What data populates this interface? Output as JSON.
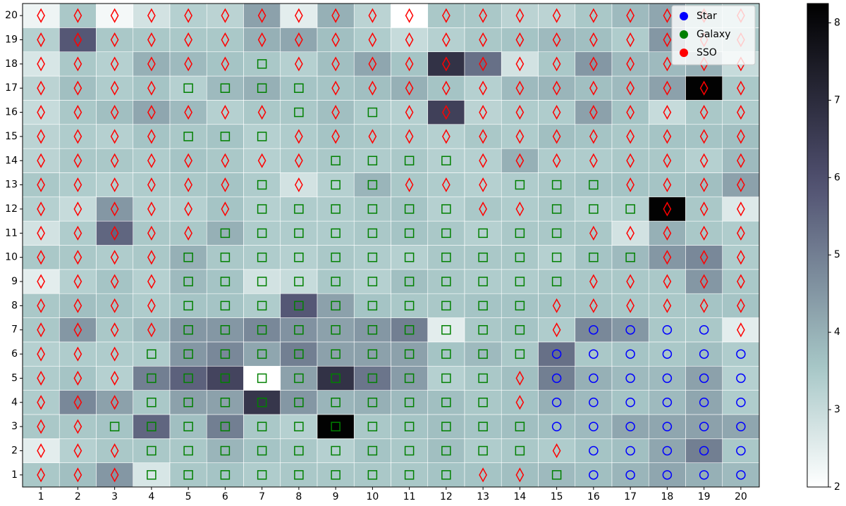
{
  "chart_data": {
    "type": "heatmap",
    "categories": [
      1,
      2,
      3,
      4,
      5,
      6,
      7,
      8,
      9,
      10,
      11,
      12,
      13,
      14,
      15,
      16,
      17,
      18,
      19,
      20
    ],
    "y_categories": [
      1,
      2,
      3,
      4,
      5,
      6,
      7,
      8,
      9,
      10,
      11,
      12,
      13,
      14,
      15,
      16,
      17,
      18,
      19,
      20
    ],
    "z": [
      [
        3.5,
        3.7,
        4.5,
        2.7,
        3.5,
        3.6,
        3.4,
        3.5,
        3.5,
        3.5,
        3.5,
        3.6,
        3.6,
        3.7,
        3.8,
        3.7,
        3.9,
        4.2,
        4.0,
        3.8
      ],
      [
        2.5,
        3.3,
        3.5,
        3.5,
        3.5,
        3.9,
        3.6,
        3.5,
        3.3,
        3.6,
        3.5,
        3.7,
        3.4,
        3.5,
        3.4,
        3.6,
        3.7,
        4.2,
        5.0,
        3.5
      ],
      [
        3.5,
        3.5,
        3.6,
        5.5,
        3.7,
        5.0,
        3.5,
        3.3,
        8.2,
        3.5,
        3.6,
        3.7,
        3.6,
        3.7,
        3.7,
        3.8,
        4.2,
        4.2,
        4.3,
        4.2
      ],
      [
        3.4,
        4.8,
        4.3,
        3.5,
        4.3,
        4.3,
        6.7,
        4.5,
        3.9,
        4.0,
        3.8,
        3.7,
        3.5,
        3.6,
        4.0,
        3.8,
        3.6,
        3.8,
        4.2,
        3.4
      ],
      [
        3.4,
        3.6,
        3.3,
        5.0,
        5.6,
        6.3,
        2.0,
        4.3,
        6.8,
        5.2,
        4.4,
        3.3,
        3.5,
        3.7,
        5.0,
        4.0,
        3.8,
        3.8,
        4.3,
        3.3
      ],
      [
        3.3,
        3.4,
        3.4,
        3.4,
        4.5,
        4.8,
        4.2,
        5.0,
        4.3,
        4.3,
        4.3,
        3.6,
        3.8,
        3.5,
        5.3,
        3.5,
        3.6,
        3.5,
        3.7,
        3.4
      ],
      [
        3.5,
        4.5,
        3.5,
        3.8,
        4.5,
        4.5,
        4.8,
        4.6,
        4.3,
        4.5,
        5.0,
        2.5,
        3.5,
        3.6,
        3.4,
        4.8,
        4.5,
        3.5,
        3.5,
        2.5
      ],
      [
        3.5,
        3.7,
        3.6,
        3.4,
        3.6,
        3.6,
        3.4,
        5.8,
        4.3,
        3.6,
        3.5,
        3.5,
        3.6,
        3.6,
        3.6,
        3.6,
        3.5,
        3.5,
        3.6,
        3.6
      ],
      [
        2.5,
        3.3,
        3.6,
        3.3,
        3.8,
        3.6,
        2.8,
        3.0,
        3.5,
        3.3,
        3.7,
        3.5,
        3.4,
        3.4,
        3.5,
        3.5,
        3.5,
        3.5,
        4.5,
        3.5
      ],
      [
        3.5,
        3.5,
        3.4,
        3.5,
        4.0,
        3.5,
        3.4,
        3.3,
        3.5,
        3.4,
        3.3,
        3.5,
        3.5,
        3.5,
        3.3,
        3.6,
        3.8,
        4.5,
        4.8,
        3.4
      ],
      [
        2.8,
        3.4,
        5.5,
        3.5,
        3.5,
        4.0,
        3.4,
        3.4,
        3.4,
        3.5,
        3.6,
        3.5,
        3.3,
        3.5,
        3.5,
        3.5,
        2.8,
        4.0,
        3.5,
        3.4
      ],
      [
        3.3,
        3.0,
        4.5,
        3.3,
        3.3,
        3.6,
        3.3,
        3.4,
        3.4,
        3.5,
        3.6,
        3.3,
        3.5,
        3.4,
        3.5,
        3.3,
        3.3,
        8.2,
        3.5,
        2.6
      ],
      [
        3.5,
        3.4,
        3.3,
        3.4,
        3.5,
        3.6,
        3.4,
        2.8,
        3.3,
        3.9,
        3.5,
        3.4,
        3.3,
        3.4,
        3.5,
        3.6,
        3.6,
        3.6,
        3.7,
        4.3
      ],
      [
        3.2,
        3.5,
        3.5,
        3.4,
        3.6,
        3.5,
        3.3,
        3.4,
        3.5,
        3.4,
        3.5,
        3.3,
        3.3,
        4.0,
        3.4,
        3.4,
        3.5,
        3.5,
        3.3,
        3.8
      ],
      [
        3.2,
        3.4,
        3.3,
        3.6,
        3.5,
        3.6,
        3.3,
        3.4,
        3.6,
        3.5,
        3.4,
        3.3,
        3.5,
        3.4,
        3.7,
        3.6,
        3.5,
        3.6,
        3.6,
        3.7
      ],
      [
        3.0,
        3.5,
        3.7,
        4.2,
        3.8,
        3.3,
        3.5,
        3.5,
        3.7,
        3.4,
        3.3,
        6.4,
        3.2,
        3.4,
        3.4,
        4.3,
        3.6,
        3.0,
        3.5,
        3.4
      ],
      [
        3.2,
        3.7,
        3.4,
        3.6,
        3.3,
        3.8,
        4.0,
        3.6,
        3.6,
        3.7,
        4.0,
        3.6,
        3.3,
        3.8,
        3.9,
        3.7,
        3.8,
        4.3,
        8.2,
        3.5
      ],
      [
        2.7,
        3.5,
        3.3,
        4.0,
        3.8,
        3.6,
        3.5,
        3.3,
        3.7,
        4.2,
        3.6,
        6.8,
        5.3,
        2.8,
        3.5,
        4.5,
        3.8,
        3.8,
        4.0,
        3.0
      ],
      [
        3.3,
        5.8,
        3.5,
        3.5,
        3.5,
        3.5,
        4.0,
        4.2,
        3.7,
        3.4,
        3.0,
        3.3,
        3.5,
        3.6,
        3.8,
        3.7,
        3.4,
        4.5,
        3.5,
        3.5
      ],
      [
        2.3,
        3.5,
        2.2,
        2.8,
        3.3,
        3.2,
        4.3,
        2.5,
        4.0,
        3.2,
        2.0,
        3.5,
        3.5,
        3.2,
        3.2,
        3.5,
        3.8,
        4.2,
        3.5,
        3.3
      ]
    ],
    "cell_class": [
      [
        2,
        2,
        2,
        1,
        1,
        1,
        1,
        1,
        1,
        1,
        1,
        1,
        2,
        2,
        1,
        0,
        0,
        0,
        0,
        0
      ],
      [
        2,
        2,
        2,
        1,
        1,
        1,
        1,
        1,
        1,
        1,
        1,
        1,
        1,
        1,
        2,
        0,
        0,
        0,
        0,
        0
      ],
      [
        2,
        2,
        1,
        1,
        1,
        1,
        1,
        1,
        1,
        1,
        1,
        1,
        1,
        1,
        0,
        0,
        0,
        0,
        0,
        0
      ],
      [
        2,
        2,
        2,
        1,
        1,
        1,
        1,
        1,
        1,
        1,
        1,
        1,
        1,
        2,
        0,
        0,
        0,
        0,
        0,
        0
      ],
      [
        2,
        2,
        2,
        1,
        1,
        1,
        1,
        1,
        1,
        1,
        1,
        1,
        1,
        2,
        0,
        0,
        0,
        0,
        0,
        0
      ],
      [
        2,
        2,
        2,
        1,
        1,
        1,
        1,
        1,
        1,
        1,
        1,
        1,
        1,
        1,
        0,
        0,
        0,
        0,
        0,
        0
      ],
      [
        2,
        2,
        2,
        2,
        1,
        1,
        1,
        1,
        1,
        1,
        1,
        1,
        1,
        1,
        2,
        0,
        0,
        0,
        0,
        2
      ],
      [
        2,
        2,
        2,
        2,
        1,
        1,
        1,
        1,
        1,
        1,
        1,
        1,
        1,
        1,
        2,
        2,
        2,
        2,
        2,
        2
      ],
      [
        2,
        2,
        2,
        2,
        1,
        1,
        1,
        1,
        1,
        1,
        1,
        1,
        1,
        1,
        1,
        2,
        2,
        2,
        2,
        2
      ],
      [
        2,
        2,
        2,
        2,
        1,
        1,
        1,
        1,
        1,
        1,
        1,
        1,
        1,
        1,
        1,
        1,
        1,
        2,
        2,
        2
      ],
      [
        2,
        2,
        2,
        2,
        2,
        1,
        1,
        1,
        1,
        1,
        1,
        1,
        1,
        1,
        1,
        2,
        2,
        2,
        2,
        2
      ],
      [
        2,
        2,
        2,
        2,
        2,
        2,
        1,
        1,
        1,
        1,
        1,
        1,
        2,
        2,
        1,
        1,
        1,
        2,
        2,
        2
      ],
      [
        2,
        2,
        2,
        2,
        2,
        2,
        1,
        2,
        1,
        1,
        2,
        2,
        2,
        1,
        1,
        1,
        2,
        2,
        2,
        2
      ],
      [
        2,
        2,
        2,
        2,
        2,
        2,
        2,
        2,
        1,
        1,
        1,
        1,
        2,
        2,
        2,
        2,
        2,
        2,
        2,
        2
      ],
      [
        2,
        2,
        2,
        2,
        1,
        1,
        1,
        2,
        2,
        2,
        2,
        2,
        2,
        2,
        2,
        2,
        2,
        2,
        2,
        2
      ],
      [
        2,
        2,
        2,
        2,
        2,
        2,
        2,
        1,
        2,
        1,
        2,
        2,
        2,
        2,
        2,
        2,
        2,
        2,
        2,
        2
      ],
      [
        2,
        2,
        2,
        2,
        1,
        1,
        1,
        1,
        2,
        2,
        2,
        2,
        2,
        2,
        2,
        2,
        2,
        2,
        2,
        2
      ],
      [
        2,
        2,
        2,
        2,
        2,
        2,
        1,
        2,
        2,
        2,
        2,
        2,
        2,
        2,
        2,
        2,
        2,
        2,
        2,
        2
      ],
      [
        2,
        2,
        2,
        2,
        2,
        2,
        2,
        2,
        2,
        2,
        2,
        2,
        2,
        2,
        2,
        2,
        2,
        2,
        2,
        2
      ],
      [
        2,
        2,
        2,
        2,
        2,
        2,
        2,
        2,
        2,
        2,
        2,
        2,
        2,
        2,
        2,
        2,
        2,
        2,
        2,
        2
      ]
    ],
    "series": [
      {
        "name": "Star",
        "color": "#0000ff",
        "marker": "circle"
      },
      {
        "name": "Galaxy",
        "color": "#008000",
        "marker": "square"
      },
      {
        "name": "SSO",
        "color": "#ff0000",
        "marker": "diamond"
      }
    ],
    "xlim": [
      0.5,
      20.5
    ],
    "ylim": [
      0.5,
      20.5
    ],
    "clim": [
      2,
      8.25
    ],
    "cticks": [
      2,
      3,
      4,
      5,
      6,
      7,
      8
    ],
    "colormap": "bone_r",
    "legend": "upper right"
  }
}
